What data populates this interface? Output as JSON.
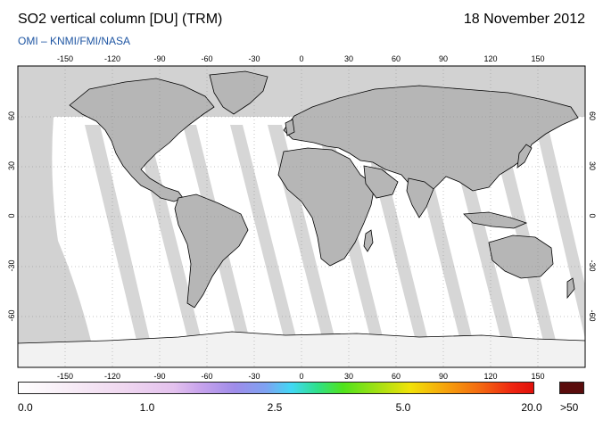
{
  "header": {
    "title": "SO2 vertical column [DU] (TRM)",
    "date": "18 November 2012",
    "credit": "OMI  –  KNMI/FMI/NASA"
  },
  "map": {
    "longitude_ticks": [
      "-150",
      "-120",
      "-90",
      "-60",
      "-30",
      "0",
      "30",
      "60",
      "90",
      "120",
      "150"
    ],
    "latitude_ticks": [
      "60",
      "30",
      "0",
      "-30",
      "-60"
    ],
    "colors": {
      "land": "#b6b6b6",
      "no_data": "#d2d2d2",
      "coastline": "#000000",
      "grid": "#888888"
    }
  },
  "colorbar": {
    "labels": [
      "0.0",
      "1.0",
      "2.5",
      "5.0",
      "20.0"
    ],
    "over_label": ">50",
    "over_color": "#5a0c0c"
  }
}
